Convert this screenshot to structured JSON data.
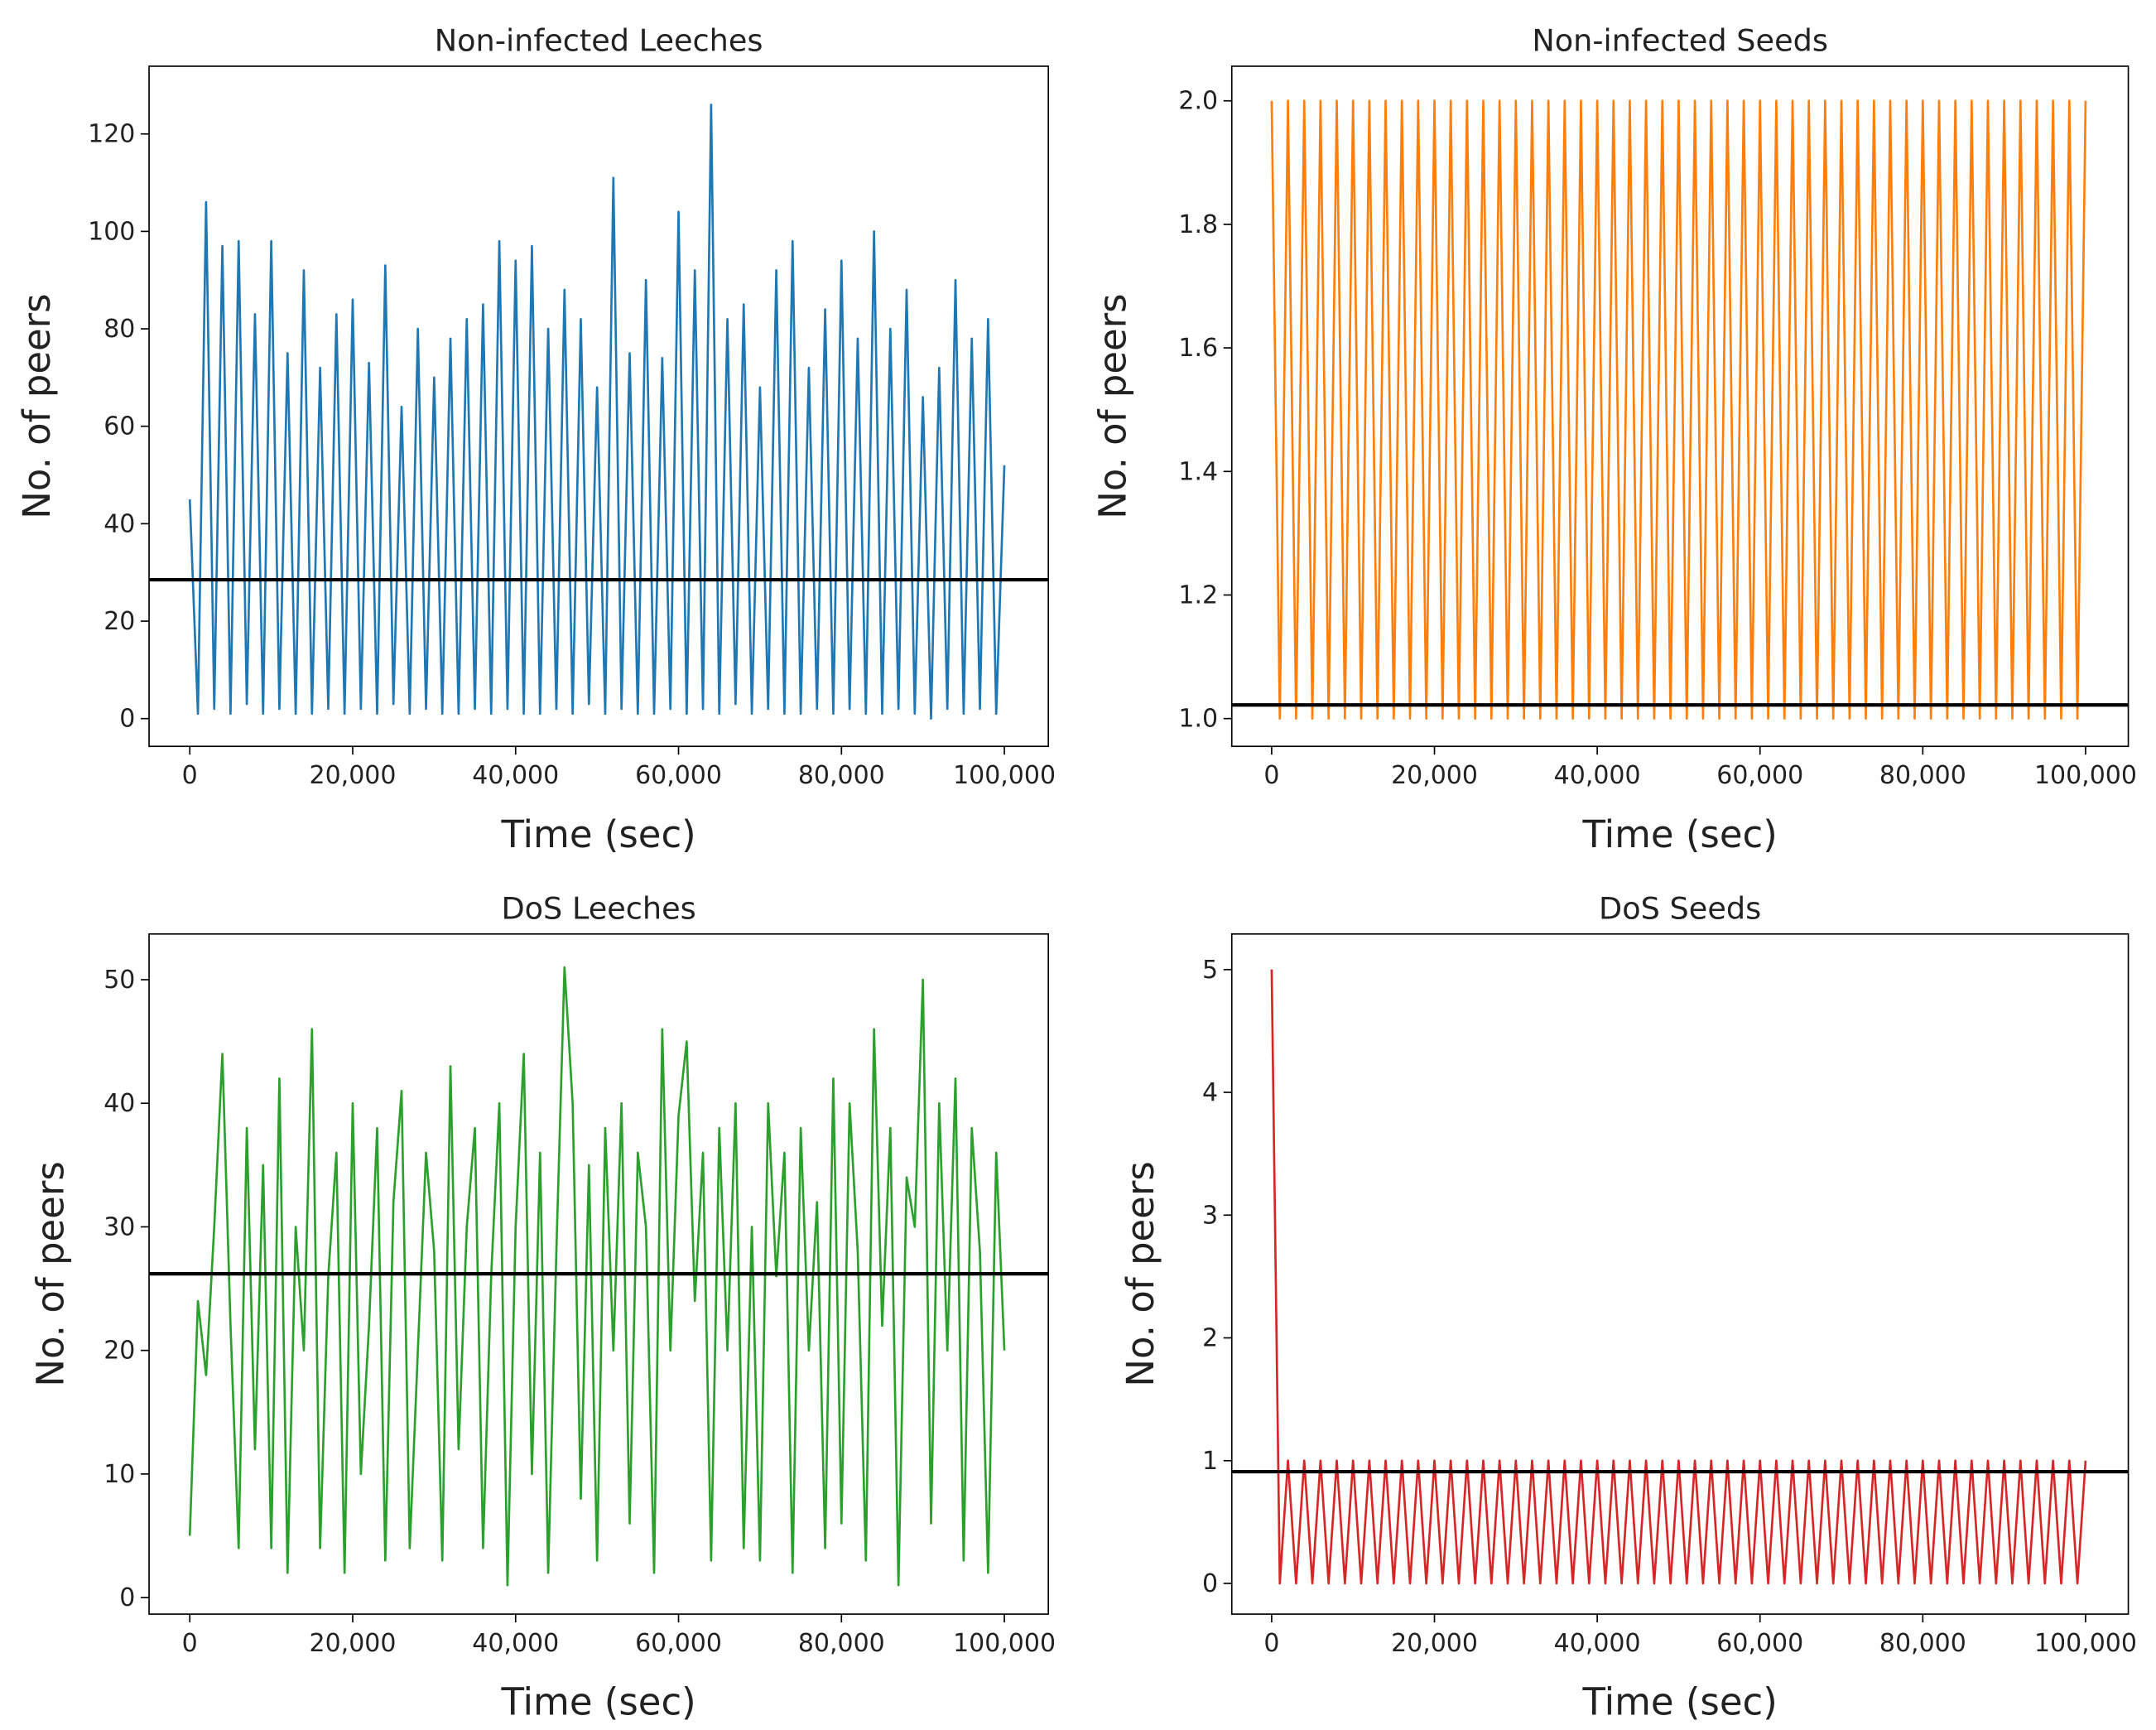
{
  "chart_data": [
    {
      "type": "line",
      "title": "Non-infected Leeches",
      "xlabel": "Time (sec)",
      "ylabel": "No. of peers",
      "x": [
        0,
        1000,
        2000,
        3000,
        4000,
        5000,
        6000,
        7000,
        8000,
        9000,
        10000,
        11000,
        12000,
        13000,
        14000,
        15000,
        16000,
        17000,
        18000,
        19000,
        20000,
        21000,
        22000,
        23000,
        24000,
        25000,
        26000,
        27000,
        28000,
        29000,
        30000,
        31000,
        32000,
        33000,
        34000,
        35000,
        36000,
        37000,
        38000,
        39000,
        40000,
        41000,
        42000,
        43000,
        44000,
        45000,
        46000,
        47000,
        48000,
        49000,
        50000,
        51000,
        52000,
        53000,
        54000,
        55000,
        56000,
        57000,
        58000,
        59000,
        60000,
        61000,
        62000,
        63000,
        64000,
        65000,
        66000,
        67000,
        68000,
        69000,
        70000,
        71000,
        72000,
        73000,
        74000,
        75000,
        76000,
        77000,
        78000,
        79000,
        80000,
        81000,
        82000,
        83000,
        84000,
        85000,
        86000,
        87000,
        88000,
        89000,
        90000,
        91000,
        92000,
        93000,
        94000,
        95000,
        96000,
        97000,
        98000,
        99000,
        100000
      ],
      "series": [
        {
          "color": "#1f77b4",
          "values": [
            45,
            1,
            106,
            2,
            97,
            1,
            98,
            3,
            83,
            1,
            98,
            2,
            75,
            1,
            92,
            1,
            72,
            2,
            83,
            1,
            86,
            2,
            73,
            1,
            93,
            3,
            64,
            1,
            80,
            2,
            70,
            1,
            78,
            1,
            82,
            2,
            85,
            1,
            98,
            2,
            94,
            1,
            97,
            1,
            80,
            2,
            88,
            1,
            82,
            3,
            68,
            1,
            111,
            2,
            75,
            1,
            90,
            1,
            74,
            2,
            104,
            1,
            92,
            2,
            126,
            1,
            82,
            3,
            85,
            1,
            68,
            2,
            92,
            1,
            98,
            1,
            72,
            2,
            84,
            1,
            94,
            2,
            78,
            1,
            100,
            1,
            80,
            2,
            88,
            1,
            66,
            0,
            72,
            2,
            90,
            1,
            78,
            2,
            82,
            1,
            52
          ]
        }
      ],
      "hline": {
        "value": 28.5,
        "color": "#000000"
      },
      "xlim": [
        -5000,
        105400
      ],
      "ylim": [
        -5.7,
        133.9
      ],
      "xticks": [
        0,
        {
          "value": 20000,
          "label": "20,000"
        },
        {
          "value": 40000,
          "label": "40,000"
        },
        {
          "value": 60000,
          "label": "60,000"
        },
        {
          "value": 80000,
          "label": "80,000"
        },
        {
          "value": 100000,
          "label": "100,000"
        }
      ],
      "yticks": [
        0,
        20,
        40,
        60,
        80,
        100,
        120
      ]
    },
    {
      "type": "line",
      "title": "Non-infected Seeds",
      "xlabel": "Time (sec)",
      "ylabel": "No. of peers",
      "x": [
        0,
        1000,
        2000,
        3000,
        4000,
        5000,
        6000,
        7000,
        8000,
        9000,
        10000,
        11000,
        12000,
        13000,
        14000,
        15000,
        16000,
        17000,
        18000,
        19000,
        20000,
        21000,
        22000,
        23000,
        24000,
        25000,
        26000,
        27000,
        28000,
        29000,
        30000,
        31000,
        32000,
        33000,
        34000,
        35000,
        36000,
        37000,
        38000,
        39000,
        40000,
        41000,
        42000,
        43000,
        44000,
        45000,
        46000,
        47000,
        48000,
        49000,
        50000,
        51000,
        52000,
        53000,
        54000,
        55000,
        56000,
        57000,
        58000,
        59000,
        60000,
        61000,
        62000,
        63000,
        64000,
        65000,
        66000,
        67000,
        68000,
        69000,
        70000,
        71000,
        72000,
        73000,
        74000,
        75000,
        76000,
        77000,
        78000,
        79000,
        80000,
        81000,
        82000,
        83000,
        84000,
        85000,
        86000,
        87000,
        88000,
        89000,
        90000,
        91000,
        92000,
        93000,
        94000,
        95000,
        96000,
        97000,
        98000,
        99000,
        100000
      ],
      "series": [
        {
          "color": "#ff7f0e",
          "values": [
            2,
            1,
            2,
            1,
            2,
            1,
            2,
            1,
            2,
            1,
            2,
            1,
            2,
            1,
            2,
            1,
            2,
            1,
            2,
            1,
            2,
            1,
            2,
            1,
            2,
            1,
            2,
            1,
            2,
            1,
            2,
            1,
            2,
            1,
            2,
            1,
            2,
            1,
            2,
            1,
            2,
            1,
            2,
            1,
            2,
            1,
            2,
            1,
            2,
            1,
            2,
            1,
            2,
            1,
            2,
            1,
            2,
            1,
            2,
            1,
            2,
            1,
            2,
            1,
            2,
            1,
            2,
            1,
            2,
            1,
            2,
            1,
            2,
            1,
            2,
            1,
            2,
            1,
            2,
            1,
            2,
            1,
            2,
            1,
            2,
            1,
            2,
            1,
            2,
            1,
            2,
            1,
            2,
            1,
            2,
            1,
            2,
            1,
            2,
            1,
            2
          ]
        }
      ],
      "hline": {
        "value": 1.022,
        "color": "#000000"
      },
      "xlim": [
        -4900,
        105250
      ],
      "ylim": [
        0.955,
        2.056
      ],
      "xticks": [
        0,
        {
          "value": 20000,
          "label": "20,000"
        },
        {
          "value": 40000,
          "label": "40,000"
        },
        {
          "value": 60000,
          "label": "60,000"
        },
        {
          "value": 80000,
          "label": "80,000"
        },
        {
          "value": 100000,
          "label": "100,000"
        }
      ],
      "yticks": [
        {
          "value": 1,
          "label": "1.0"
        },
        1.2,
        1.4,
        1.6,
        1.8,
        {
          "value": 2,
          "label": "2.0"
        }
      ]
    },
    {
      "type": "line",
      "title": "DoS Leeches",
      "xlabel": "Time (sec)",
      "ylabel": "No. of peers",
      "x": [
        0,
        1000,
        2000,
        3000,
        4000,
        5000,
        6000,
        7000,
        8000,
        9000,
        10000,
        11000,
        12000,
        13000,
        14000,
        15000,
        16000,
        17000,
        18000,
        19000,
        20000,
        21000,
        22000,
        23000,
        24000,
        25000,
        26000,
        27000,
        28000,
        29000,
        30000,
        31000,
        32000,
        33000,
        34000,
        35000,
        36000,
        37000,
        38000,
        39000,
        40000,
        41000,
        42000,
        43000,
        44000,
        45000,
        46000,
        47000,
        48000,
        49000,
        50000,
        51000,
        52000,
        53000,
        54000,
        55000,
        56000,
        57000,
        58000,
        59000,
        60000,
        61000,
        62000,
        63000,
        64000,
        65000,
        66000,
        67000,
        68000,
        69000,
        70000,
        71000,
        72000,
        73000,
        74000,
        75000,
        76000,
        77000,
        78000,
        79000,
        80000,
        81000,
        82000,
        83000,
        84000,
        85000,
        86000,
        87000,
        88000,
        89000,
        90000,
        91000,
        92000,
        93000,
        94000,
        95000,
        96000,
        97000,
        98000,
        99000,
        100000
      ],
      "series": [
        {
          "color": "#2ca02c",
          "values": [
            5,
            24,
            18,
            30,
            44,
            22,
            4,
            38,
            12,
            35,
            4,
            42,
            2,
            30,
            20,
            46,
            4,
            26,
            36,
            2,
            40,
            10,
            22,
            38,
            3,
            32,
            41,
            4,
            20,
            36,
            28,
            3,
            43,
            12,
            30,
            38,
            4,
            26,
            40,
            1,
            30,
            44,
            10,
            36,
            2,
            28,
            51,
            40,
            8,
            35,
            3,
            38,
            20,
            40,
            6,
            36,
            30,
            2,
            46,
            20,
            39,
            45,
            24,
            36,
            3,
            38,
            20,
            40,
            4,
            30,
            3,
            40,
            26,
            36,
            2,
            38,
            20,
            32,
            4,
            42,
            6,
            40,
            28,
            3,
            46,
            22,
            38,
            1,
            34,
            30,
            50,
            6,
            40,
            20,
            42,
            3,
            38,
            28,
            2,
            36,
            20
          ]
        }
      ],
      "hline": {
        "value": 26.2,
        "color": "#000000"
      },
      "xlim": [
        -5000,
        105400
      ],
      "ylim": [
        -1.34,
        53.7
      ],
      "xticks": [
        0,
        {
          "value": 20000,
          "label": "20,000"
        },
        {
          "value": 40000,
          "label": "40,000"
        },
        {
          "value": 60000,
          "label": "60,000"
        },
        {
          "value": 80000,
          "label": "80,000"
        },
        {
          "value": 100000,
          "label": "100,000"
        }
      ],
      "yticks": [
        0,
        10,
        20,
        30,
        40,
        50
      ]
    },
    {
      "type": "line",
      "title": "DoS Seeds",
      "xlabel": "Time (sec)",
      "ylabel": "No. of peers",
      "x": [
        0,
        1000,
        2000,
        3000,
        4000,
        5000,
        6000,
        7000,
        8000,
        9000,
        10000,
        11000,
        12000,
        13000,
        14000,
        15000,
        16000,
        17000,
        18000,
        19000,
        20000,
        21000,
        22000,
        23000,
        24000,
        25000,
        26000,
        27000,
        28000,
        29000,
        30000,
        31000,
        32000,
        33000,
        34000,
        35000,
        36000,
        37000,
        38000,
        39000,
        40000,
        41000,
        42000,
        43000,
        44000,
        45000,
        46000,
        47000,
        48000,
        49000,
        50000,
        51000,
        52000,
        53000,
        54000,
        55000,
        56000,
        57000,
        58000,
        59000,
        60000,
        61000,
        62000,
        63000,
        64000,
        65000,
        66000,
        67000,
        68000,
        69000,
        70000,
        71000,
        72000,
        73000,
        74000,
        75000,
        76000,
        77000,
        78000,
        79000,
        80000,
        81000,
        82000,
        83000,
        84000,
        85000,
        86000,
        87000,
        88000,
        89000,
        90000,
        91000,
        92000,
        93000,
        94000,
        95000,
        96000,
        97000,
        98000,
        99000,
        100000
      ],
      "series": [
        {
          "color": "#d62728",
          "values": [
            5,
            0,
            1,
            0,
            1,
            0,
            1,
            0,
            1,
            0,
            1,
            0,
            1,
            0,
            1,
            0,
            1,
            0,
            1,
            0,
            1,
            0,
            1,
            0,
            1,
            0,
            1,
            0,
            1,
            0,
            1,
            0,
            1,
            0,
            1,
            0,
            1,
            0,
            1,
            0,
            1,
            0,
            1,
            0,
            1,
            0,
            1,
            0,
            1,
            0,
            1,
            0,
            1,
            0,
            1,
            0,
            1,
            0,
            1,
            0,
            1,
            0,
            1,
            0,
            1,
            0,
            1,
            0,
            1,
            0,
            1,
            0,
            1,
            0,
            1,
            0,
            1,
            0,
            1,
            0,
            1,
            0,
            1,
            0,
            1,
            0,
            1,
            0,
            1,
            0,
            1,
            0,
            1,
            0,
            1,
            0,
            1,
            0,
            1,
            0,
            1
          ]
        }
      ],
      "hline": {
        "value": 0.91,
        "color": "#000000"
      },
      "xlim": [
        -4900,
        105250
      ],
      "ylim": [
        -0.25,
        5.29
      ],
      "xticks": [
        0,
        {
          "value": 20000,
          "label": "20,000"
        },
        {
          "value": 40000,
          "label": "40,000"
        },
        {
          "value": 60000,
          "label": "60,000"
        },
        {
          "value": 80000,
          "label": "80,000"
        },
        {
          "value": 100000,
          "label": "100,000"
        }
      ],
      "yticks": [
        0,
        1,
        2,
        3,
        4,
        5
      ]
    }
  ]
}
